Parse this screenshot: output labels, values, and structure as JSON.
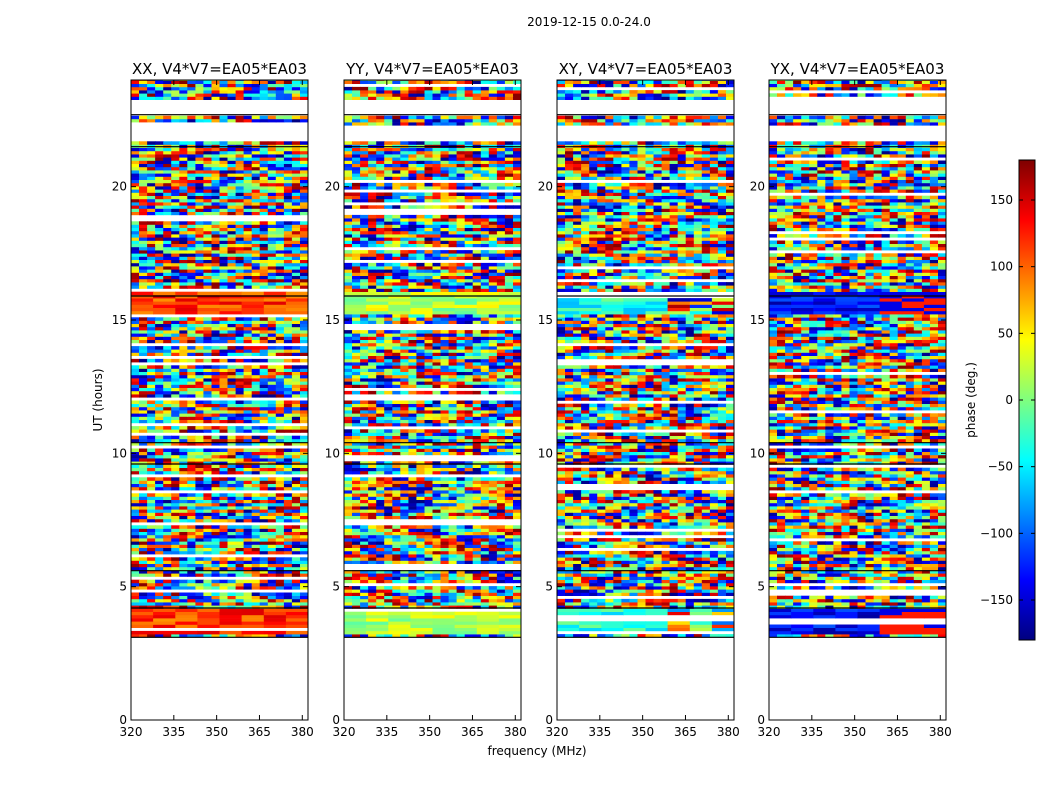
{
  "figure": {
    "suptitle": "2019-12-15 0.0-24.0"
  },
  "chart_data": [
    {
      "type": "heatmap",
      "title": "XX, V4*V7=EA05*EA03",
      "xlabel": "",
      "ylabel": "UT (hours)",
      "xlim": [
        320,
        382
      ],
      "ylim": [
        0,
        24
      ],
      "xticks": [
        "320",
        "335",
        "350",
        "365",
        "380"
      ],
      "yticks": [
        "0",
        "5",
        "10",
        "15",
        "20"
      ],
      "description": "baseline phase waterfall (hour vs frequency)"
    },
    {
      "type": "heatmap",
      "title": "YY, V4*V7=EA05*EA03",
      "xlabel": "frequency (MHz)",
      "ylabel": "",
      "xlim": [
        320,
        382
      ],
      "ylim": [
        0,
        24
      ],
      "xticks": [
        "320",
        "335",
        "350",
        "365",
        "380"
      ],
      "yticks": [
        "0",
        "5",
        "10",
        "15",
        "20"
      ],
      "description": "baseline phase waterfall (hour vs frequency)"
    },
    {
      "type": "heatmap",
      "title": "XY, V4*V7=EA05*EA03",
      "xlabel": "",
      "ylabel": "",
      "xlim": [
        320,
        382
      ],
      "ylim": [
        0,
        24
      ],
      "xticks": [
        "320",
        "335",
        "350",
        "365",
        "380"
      ],
      "yticks": [
        "0",
        "5",
        "10",
        "15",
        "20"
      ],
      "description": "baseline phase waterfall (hour vs frequency)"
    },
    {
      "type": "heatmap",
      "title": "YX, V4*V7=EA05*EA03",
      "xlabel": "",
      "ylabel": "",
      "xlim": [
        320,
        382
      ],
      "ylim": [
        0,
        24
      ],
      "xticks": [
        "320",
        "335",
        "350",
        "365",
        "380"
      ],
      "yticks": [
        "0",
        "5",
        "10",
        "15",
        "20"
      ],
      "description": "baseline phase waterfall (hour vs frequency)"
    }
  ],
  "colorbar": {
    "label": "phase (deg.)",
    "range": [
      -180,
      180
    ],
    "ticks": [
      "150",
      "100",
      "50",
      "0",
      "−50",
      "−100",
      "−150"
    ],
    "tick_values": [
      150,
      100,
      50,
      0,
      -50,
      -100,
      -150
    ],
    "colors": [
      "#00007f",
      "#0000ff",
      "#007fff",
      "#00ffff",
      "#7fff7f",
      "#ffff00",
      "#ff7f00",
      "#ff0000",
      "#7f0000"
    ]
  }
}
